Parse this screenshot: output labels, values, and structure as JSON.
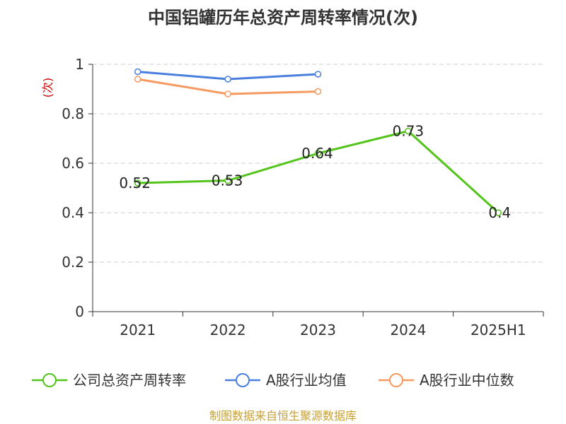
{
  "title": "中国铝罐历年总资产周转率情况(次)",
  "source": "制图数据来自恒生聚源数据库",
  "chart_data": {
    "type": "line",
    "title": "中国铝罐历年总资产周转率情况(次)",
    "ylabel": "(次)",
    "xlabel": "",
    "categories": [
      "2021",
      "2022",
      "2023",
      "2024",
      "2025H1"
    ],
    "ylim": [
      0,
      1
    ],
    "yticks": [
      0,
      0.2,
      0.4,
      0.6,
      0.8,
      1
    ],
    "ytick_labels": [
      "0",
      "0.2",
      "0.4",
      "0.6",
      "0.8",
      "1"
    ],
    "grid": true,
    "legend_position": "bottom",
    "series": [
      {
        "name": "公司总资产周转率",
        "color": "#52c41a",
        "values": [
          0.52,
          0.53,
          0.64,
          0.73,
          0.4
        ],
        "labels": [
          "0.52",
          "0.53",
          "0.64",
          "0.73",
          "0.4"
        ],
        "show_labels": true
      },
      {
        "name": "A股行业均值",
        "color": "#4a7fe0",
        "values": [
          0.97,
          0.94,
          0.96,
          null,
          null
        ],
        "show_labels": false
      },
      {
        "name": "A股行业中位数",
        "color": "#f79a62",
        "values": [
          0.94,
          0.88,
          0.89,
          null,
          null
        ],
        "show_labels": false
      }
    ]
  }
}
